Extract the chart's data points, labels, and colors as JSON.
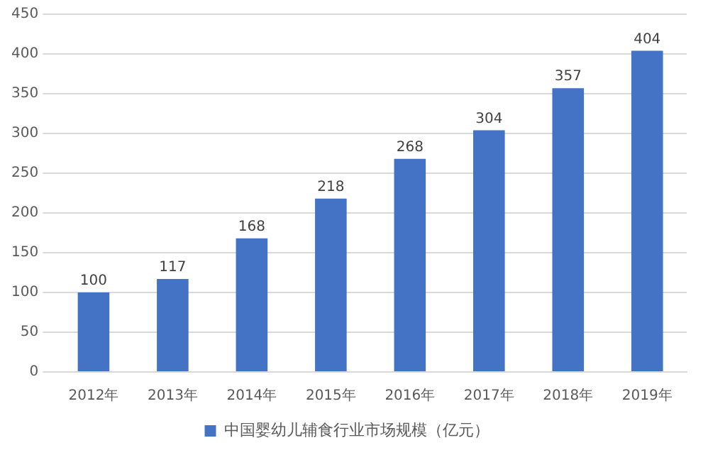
{
  "chart_data": {
    "type": "bar",
    "categories": [
      "2012年",
      "2013年",
      "2014年",
      "2015年",
      "2016年",
      "2017年",
      "2018年",
      "2019年"
    ],
    "series": [
      {
        "name": "中国婴幼儿辅食行业市场规模（亿元）",
        "color": "#4472c4",
        "values": [
          100,
          117,
          168,
          218,
          268,
          304,
          357,
          404
        ]
      }
    ],
    "ylim": [
      0,
      450
    ],
    "yticks": [
      0,
      50,
      100,
      150,
      200,
      250,
      300,
      350,
      400,
      450
    ],
    "grid": "y",
    "legend": "bottom",
    "data_labels": true
  }
}
